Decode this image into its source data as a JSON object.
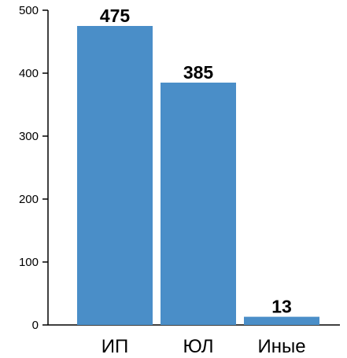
{
  "chart_data": {
    "type": "bar",
    "categories": [
      "ИП",
      "ЮЛ",
      "Иные"
    ],
    "values": [
      475,
      385,
      13
    ],
    "value_labels": [
      "475",
      "385",
      "13"
    ],
    "ylim": [
      0,
      500
    ],
    "yticks": [
      0,
      100,
      200,
      300,
      400,
      500
    ],
    "ytick_labels": [
      "0",
      "100",
      "200",
      "300",
      "400",
      "500"
    ],
    "grid": false,
    "legend": "none",
    "bar_color": "#4a8ec8",
    "axis_color": "#000000"
  }
}
